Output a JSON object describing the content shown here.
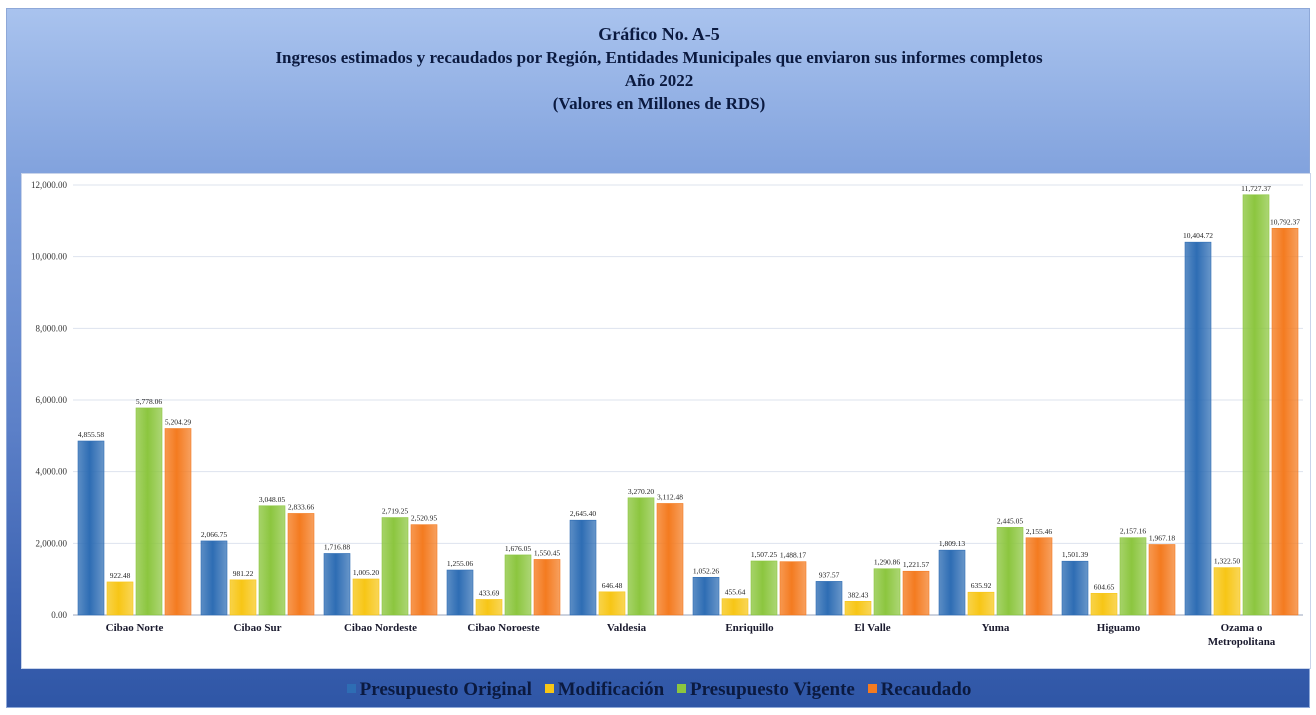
{
  "colors": {
    "presupuesto_original": "#2e6db4",
    "modificacion": "#f7c616",
    "presupuesto_vigente": "#8cc63f",
    "recaudado": "#f47b20"
  },
  "chart_data": {
    "type": "bar",
    "title_lines": [
      "Gráfico No. A-5",
      "Ingresos estimados y recaudados por Región, Entidades Municipales que enviaron sus informes completos",
      "Año 2022",
      "(Valores en Millones de RDS)"
    ],
    "categories": [
      "Cibao Norte",
      "Cibao Sur",
      "Cibao Nordeste",
      "Cibao Noroeste",
      "Valdesia",
      "Enriquillo",
      "El Valle",
      "Yuma",
      "Higuamo",
      "Ozama o Metropolitana"
    ],
    "series": [
      {
        "name": "Presupuesto Original",
        "values": [
          4855.58,
          2066.75,
          1716.88,
          1255.06,
          2645.4,
          1052.26,
          937.57,
          1809.13,
          1501.39,
          10404.72
        ],
        "labels": [
          "4,855.58",
          "2,066.75",
          "1,716.88",
          "1,255.06",
          "2,645.40",
          "1,052.26",
          "937.57",
          "1,809.13",
          "1,501.39",
          "10,404.72"
        ]
      },
      {
        "name": "Modificación",
        "values": [
          922.48,
          981.22,
          1005.2,
          433.69,
          646.48,
          455.64,
          382.43,
          635.92,
          604.65,
          1322.5
        ],
        "labels": [
          "922.48",
          "981.22",
          "1,005.20",
          "433.69",
          "646.48",
          "455.64",
          "382.43",
          "635.92",
          "604.65",
          "1,322.50"
        ]
      },
      {
        "name": "Presupuesto Vigente",
        "values": [
          5778.06,
          3048.05,
          2719.25,
          1676.05,
          3270.2,
          1507.25,
          1290.86,
          2445.05,
          2157.16,
          11727.37
        ],
        "labels": [
          "5,778.06",
          "3,048.05",
          "2,719.25",
          "1,676.05",
          "3,270.20",
          "1,507.25",
          "1,290.86",
          "2,445.05",
          "2,157.16",
          "11,727.37"
        ]
      },
      {
        "name": "Recaudado",
        "values": [
          5204.29,
          2833.66,
          2520.95,
          1550.45,
          3112.48,
          1488.17,
          1221.57,
          2155.46,
          1967.18,
          10792.37
        ],
        "labels": [
          "5,204.29",
          "2,833.66",
          "2,520.95",
          "1,550.45",
          "3,112.48",
          "1,488.17",
          "1,221.57",
          "2,155.46",
          "1,967.18",
          "10,792.37"
        ]
      }
    ],
    "ylim": [
      0,
      12000
    ],
    "yticks": [
      0,
      2000,
      4000,
      6000,
      8000,
      10000,
      12000
    ],
    "ytick_labels": [
      "0.00",
      "2,000.00",
      "4,000.00",
      "6,000.00",
      "8,000.00",
      "10,000.00",
      "12,000.00"
    ],
    "grid": true,
    "legend_position": "bottom"
  }
}
